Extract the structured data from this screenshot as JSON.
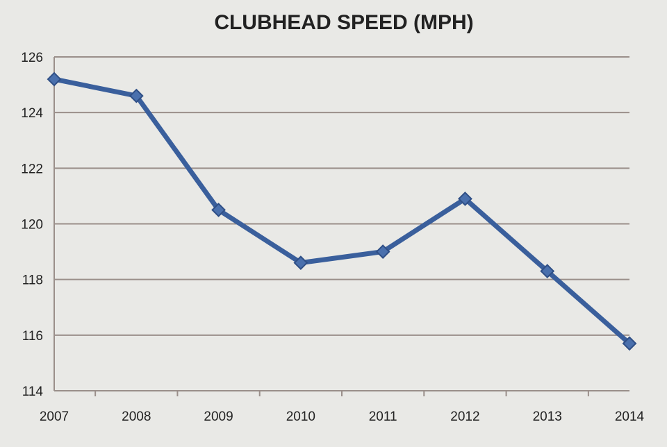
{
  "chart_data": {
    "type": "line",
    "title": "CLUBHEAD SPEED (MPH)",
    "xlabel": "",
    "ylabel": "",
    "categories": [
      "2007",
      "2008",
      "2009",
      "2010",
      "2011",
      "2012",
      "2013",
      "2014"
    ],
    "series": [
      {
        "values": [
          125.2,
          124.6,
          120.5,
          118.6,
          119.0,
          120.9,
          118.3,
          115.7
        ]
      }
    ],
    "ylim": [
      114,
      126
    ],
    "yticks": [
      114,
      116,
      118,
      120,
      122,
      124,
      126
    ],
    "grid": true,
    "legend": "none",
    "colors": {
      "background": "#e9e9e6",
      "gridline": "#9a8f8a",
      "axis": "#9a8f8a",
      "line": "#3a5f9c",
      "marker": "#4a70ad",
      "marker_stroke": "#2f4f86"
    }
  }
}
